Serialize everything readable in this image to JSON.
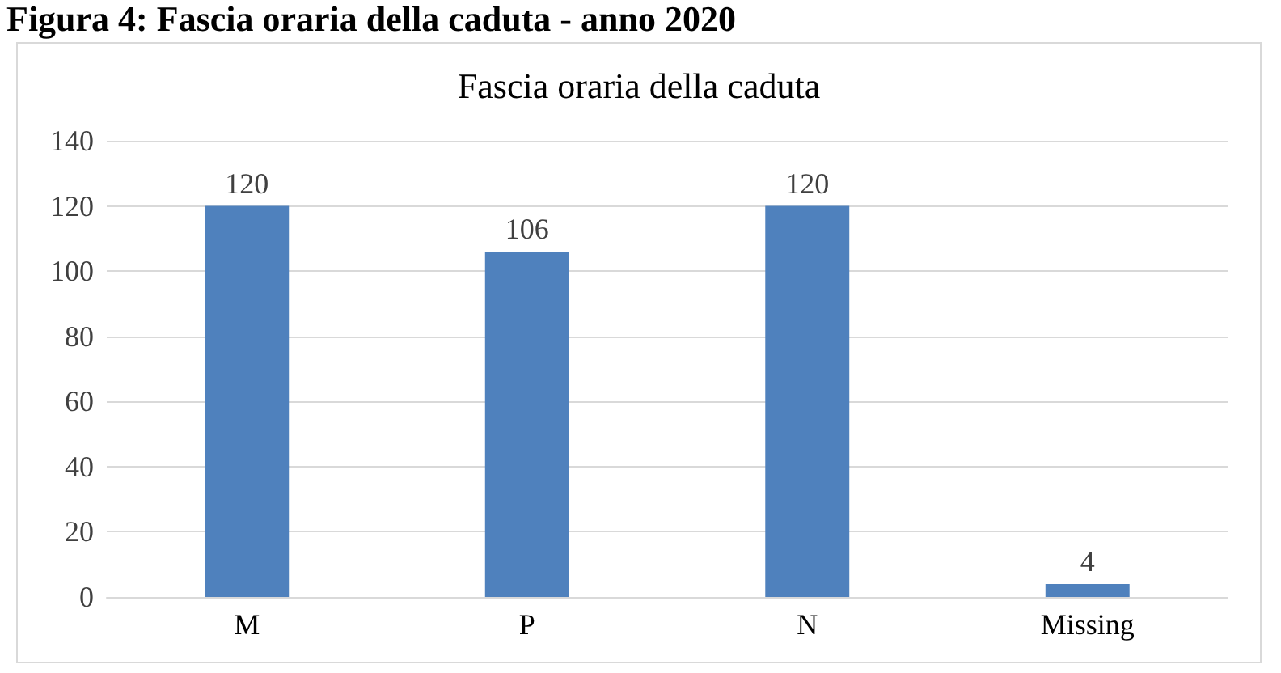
{
  "chart_data": {
    "type": "bar",
    "title": "Figura 4: Fascia oraria della caduta - anno 2020",
    "subtitle": "Fascia oraria della caduta",
    "categories": [
      "M",
      "P",
      "N",
      "Missing"
    ],
    "values": [
      120,
      106,
      120,
      4
    ],
    "color": "#4f81bd",
    "ylim": [
      0,
      140
    ],
    "yticks": [
      0,
      20,
      40,
      60,
      80,
      100,
      120,
      140
    ],
    "grid": "y",
    "data_labels": true
  }
}
